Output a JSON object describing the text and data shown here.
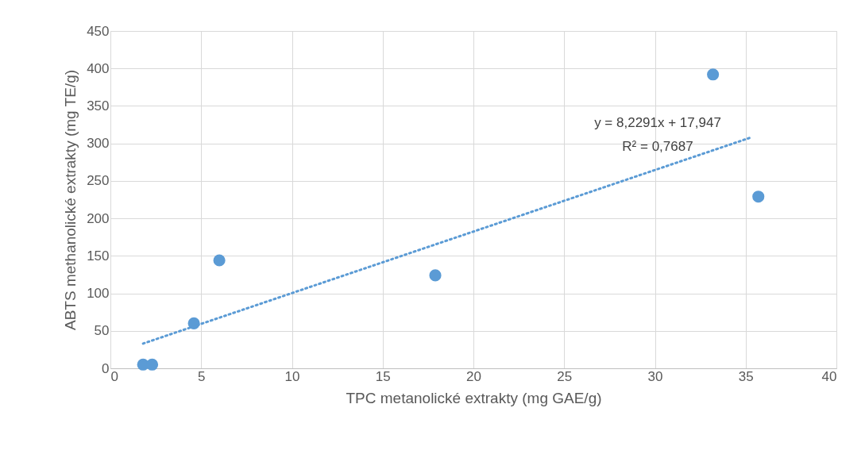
{
  "chart_data": {
    "type": "scatter",
    "xlabel": "TPC metanolické extrakty (mg GAE/g)",
    "ylabel": "ABTS methanolické extrakty (mg TE/g)",
    "x": [
      1.8,
      2.3,
      4.6,
      6.0,
      17.9,
      33.2,
      35.7
    ],
    "series": [
      {
        "color": "#5b9bd5",
        "marker": "circle",
        "values": [
          5,
          5,
          60,
          144,
          124,
          392,
          229
        ]
      },
      {
        "type": "line",
        "color": "#5b9bd5",
        "line_style": "dotted",
        "marker": "none",
        "x": [
          1.8,
          35.3
        ],
        "values": [
          33,
          308
        ]
      }
    ],
    "annotations": [
      "y = 8,2291x + 17,947",
      "R² = 0,7687"
    ],
    "xlim": [
      0,
      40
    ],
    "xticks": [
      0,
      5,
      10,
      15,
      20,
      25,
      30,
      35,
      40
    ],
    "ylim": [
      0,
      450
    ],
    "yticks": [
      0,
      50,
      100,
      150,
      200,
      250,
      300,
      350,
      400,
      450
    ],
    "grid": true
  }
}
